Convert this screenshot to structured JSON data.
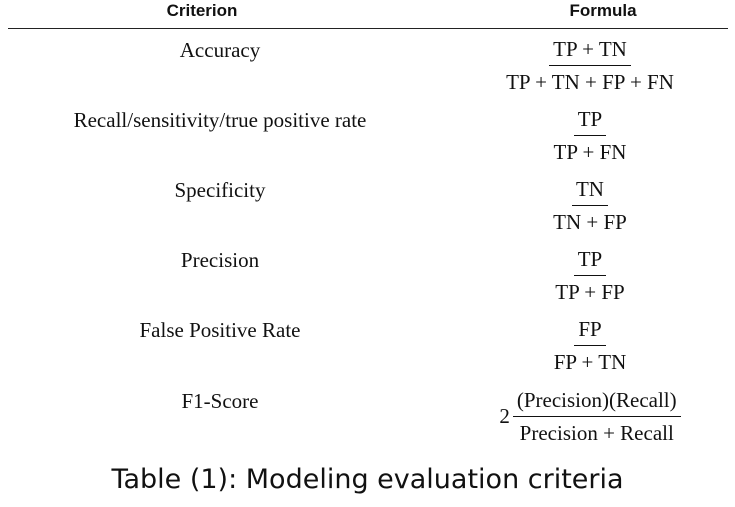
{
  "table": {
    "headers": {
      "criterion": "Criterion",
      "formula": "Formula"
    },
    "rows": [
      {
        "criterion": "Accuracy",
        "coefficient": "",
        "numerator": "TP + TN",
        "denominator": "TP + TN + FP + FN"
      },
      {
        "criterion": "Recall/sensitivity/true positive rate",
        "coefficient": "",
        "numerator": "TP",
        "denominator": "TP + FN"
      },
      {
        "criterion": "Specificity",
        "coefficient": "",
        "numerator": "TN",
        "denominator": "TN + FP"
      },
      {
        "criterion": "Precision",
        "coefficient": "",
        "numerator": "TP",
        "denominator": "TP + FP"
      },
      {
        "criterion": "False Positive Rate",
        "coefficient": "",
        "numerator": "FP",
        "denominator": "FP + TN"
      },
      {
        "criterion": "F1-Score",
        "coefficient": "2",
        "numerator": "(Precision)(Recall)",
        "denominator": "Precision + Recall"
      }
    ]
  },
  "caption": "Table (1): Modeling evaluation criteria"
}
